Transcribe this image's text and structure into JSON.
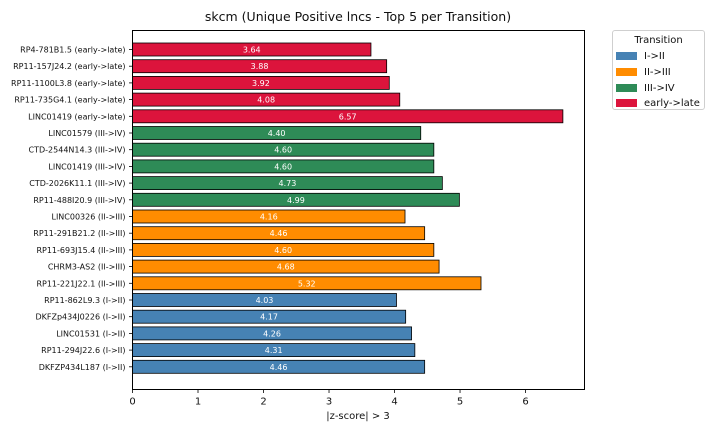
{
  "chart_data": {
    "type": "bar",
    "orientation": "horizontal",
    "title": "skcm (Unique Positive lncs - Top 5 per Transition)",
    "xlabel": "|z-score| > 3",
    "ylabel": "",
    "xlim": [
      0,
      6.9
    ],
    "xticks": [
      0,
      1,
      2,
      3,
      4,
      5,
      6
    ],
    "grid": false,
    "legend": {
      "title": "Transition",
      "placement": "outside-right-top",
      "entries": [
        {
          "label": "I->II",
          "color": "#4682b4"
        },
        {
          "label": "II->III",
          "color": "#ff8c00"
        },
        {
          "label": "III->IV",
          "color": "#2e8b57"
        },
        {
          "label": "early->late",
          "color": "#dc143c"
        }
      ]
    },
    "bars": [
      {
        "label": "RP4-781B1.5 (early->late)",
        "value": 3.64,
        "value_label": "3.64",
        "group": 3
      },
      {
        "label": "RP11-157J24.2 (early->late)",
        "value": 3.88,
        "value_label": "3.88",
        "group": 3
      },
      {
        "label": "RP11-1100L3.8 (early->late)",
        "value": 3.92,
        "value_label": "3.92",
        "group": 3
      },
      {
        "label": "RP11-735G4.1 (early->late)",
        "value": 4.08,
        "value_label": "4.08",
        "group": 3
      },
      {
        "label": "LINC01419 (early->late)",
        "value": 6.57,
        "value_label": "6.57",
        "group": 3
      },
      {
        "label": "LINC01579 (III->IV)",
        "value": 4.4,
        "value_label": "4.40",
        "group": 2
      },
      {
        "label": "CTD-2544N14.3 (III->IV)",
        "value": 4.6,
        "value_label": "4.60",
        "group": 2
      },
      {
        "label": "LINC01419 (III->IV)",
        "value": 4.6,
        "value_label": "4.60",
        "group": 2
      },
      {
        "label": "CTD-2026K11.1 (III->IV)",
        "value": 4.73,
        "value_label": "4.73",
        "group": 2
      },
      {
        "label": "RP11-488I20.9 (III->IV)",
        "value": 4.99,
        "value_label": "4.99",
        "group": 2
      },
      {
        "label": "LINC00326 (II->III)",
        "value": 4.16,
        "value_label": "4.16",
        "group": 1
      },
      {
        "label": "RP11-291B21.2 (II->III)",
        "value": 4.46,
        "value_label": "4.46",
        "group": 1
      },
      {
        "label": "RP11-693J15.4 (II->III)",
        "value": 4.6,
        "value_label": "4.60",
        "group": 1
      },
      {
        "label": "CHRM3-AS2 (II->III)",
        "value": 4.68,
        "value_label": "4.68",
        "group": 1
      },
      {
        "label": "RP11-221J22.1 (II->III)",
        "value": 5.32,
        "value_label": "5.32",
        "group": 1
      },
      {
        "label": "RP11-862L9.3 (I->II)",
        "value": 4.03,
        "value_label": "4.03",
        "group": 0
      },
      {
        "label": "DKFZp434J0226 (I->II)",
        "value": 4.17,
        "value_label": "4.17",
        "group": 0
      },
      {
        "label": "LINC01531 (I->II)",
        "value": 4.26,
        "value_label": "4.26",
        "group": 0
      },
      {
        "label": "RP11-294J22.6 (I->II)",
        "value": 4.31,
        "value_label": "4.31",
        "group": 0
      },
      {
        "label": "DKFZP434L187 (I->II)",
        "value": 4.46,
        "value_label": "4.46",
        "group": 0
      }
    ]
  }
}
